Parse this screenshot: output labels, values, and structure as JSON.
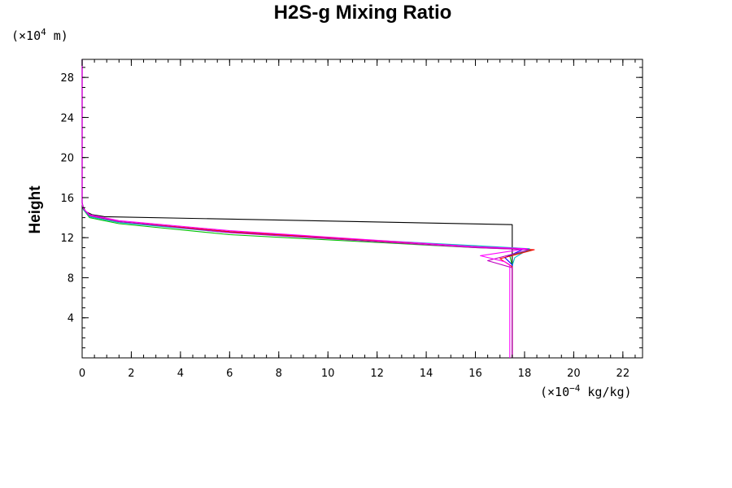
{
  "chart_data": {
    "type": "line",
    "title": "H2S-g Mixing Ratio",
    "ylabel": "Height",
    "xlabel": "",
    "x_units": {
      "prefix": "(×10",
      "exp": "−4",
      "suffix": " kg/kg)"
    },
    "y_units": {
      "prefix": "(×10",
      "exp": "4",
      "suffix": " m)"
    },
    "xlim": [
      0,
      22.8
    ],
    "ylim": [
      0,
      29.8
    ],
    "x_ticks": [
      0,
      2,
      4,
      6,
      8,
      10,
      12,
      14,
      16,
      18,
      20,
      22
    ],
    "y_ticks": [
      4,
      8,
      12,
      16,
      20,
      24,
      28
    ],
    "x_tick_labels": [
      "0",
      "2",
      "4",
      "6",
      "8",
      "10",
      "12",
      "14",
      "16",
      "18",
      "20",
      "22"
    ],
    "y_tick_labels": [
      "4",
      "8",
      "12",
      "16",
      "20",
      "24",
      "28"
    ],
    "x_minor_step": 0.5,
    "y_minor_step": 1,
    "legend": "none",
    "grid": false,
    "series": [
      {
        "color": "#000000",
        "x": [
          17.5,
          17.5,
          17.5,
          17.5,
          0.9,
          0.4,
          0.15,
          0.05,
          0.0,
          0.0
        ],
        "y": [
          0,
          9.0,
          10.6,
          13.3,
          14.1,
          14.3,
          14.6,
          15.0,
          15.5,
          29.8
        ]
      },
      {
        "color": "#00c000",
        "x": [
          17.5,
          17.5,
          17.4,
          18.3,
          16.0,
          6.0,
          1.5,
          0.3,
          0.05,
          0.0,
          0.0
        ],
        "y": [
          0,
          9.2,
          10.2,
          10.8,
          11.0,
          12.3,
          13.4,
          14.0,
          14.8,
          15.4,
          29.8
        ]
      },
      {
        "color": "#00c0c0",
        "x": [
          17.5,
          17.5,
          17.6,
          18.2,
          16.0,
          6.0,
          1.5,
          0.3,
          0.05,
          0.0,
          0.0
        ],
        "y": [
          0,
          9.2,
          10.0,
          10.9,
          11.2,
          12.5,
          13.5,
          14.1,
          14.8,
          15.4,
          29.8
        ]
      },
      {
        "color": "#0000ff",
        "x": [
          17.5,
          17.5,
          17.2,
          18.0,
          16.0,
          6.0,
          1.5,
          0.3,
          0.05,
          0.0,
          0.0
        ],
        "y": [
          0,
          9.3,
          10.0,
          10.9,
          11.1,
          12.6,
          13.6,
          14.2,
          14.9,
          15.4,
          29.8
        ]
      },
      {
        "color": "#ff0000",
        "x": [
          17.5,
          17.5,
          17.0,
          18.4,
          16.0,
          6.0,
          1.5,
          0.3,
          0.05,
          0.0,
          0.0
        ],
        "y": [
          0,
          9.1,
          9.9,
          10.8,
          11.1,
          12.6,
          13.6,
          14.2,
          14.9,
          15.4,
          29.8
        ]
      },
      {
        "color": "#c000c0",
        "x": [
          17.5,
          17.5,
          16.5,
          18.2,
          16.0,
          6.0,
          1.5,
          0.3,
          0.05,
          0.0,
          0.0
        ],
        "y": [
          0,
          9.0,
          9.7,
          10.8,
          11.0,
          12.5,
          13.6,
          14.2,
          14.9,
          15.4,
          29.8
        ]
      },
      {
        "color": "#ff00ff",
        "x": [
          17.4,
          17.4,
          17.2,
          16.2,
          18.1,
          16.0,
          6.0,
          1.5,
          0.3,
          0.05,
          0.0,
          0.0
        ],
        "y": [
          0,
          9.3,
          9.6,
          10.2,
          10.9,
          11.1,
          12.7,
          13.7,
          14.3,
          14.9,
          15.4,
          29.8
        ]
      }
    ]
  }
}
